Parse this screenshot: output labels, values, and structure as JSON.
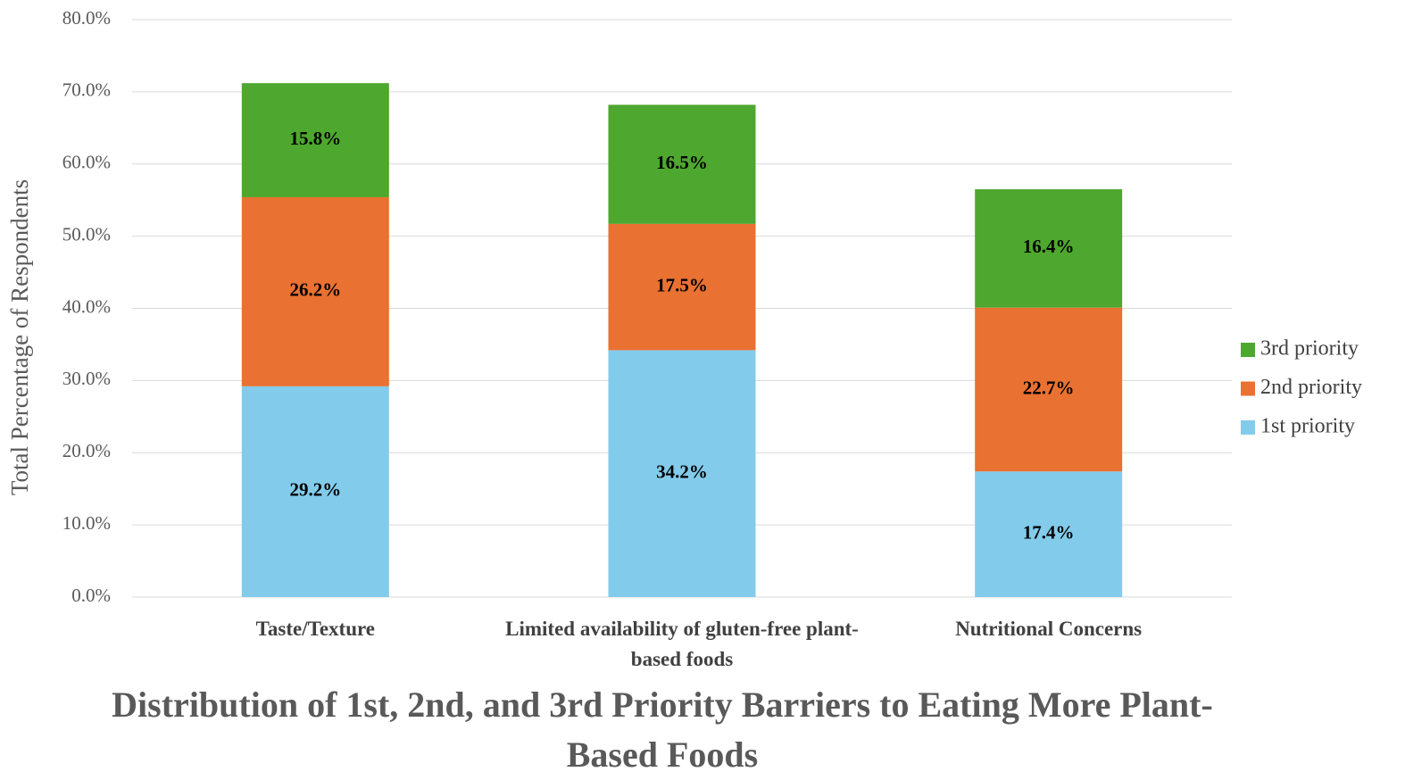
{
  "chart_data": {
    "type": "stacked_bar",
    "title": "Distribution of 1st, 2nd, and 3rd Priority Barriers to Eating More Plant-Based Foods",
    "y_label": "Total Percentage of Respondents",
    "categories": [
      "Taste/Texture",
      "Limited availability of gluten-free plant-based foods",
      "Nutritional Concerns"
    ],
    "series": [
      {
        "name": "1st priority",
        "color": "#83cbeb",
        "values": [
          29.2,
          34.2,
          17.4
        ],
        "value_labels": [
          "29.2%",
          "34.2%",
          "17.4%"
        ]
      },
      {
        "name": "2nd priority",
        "color": "#e97132",
        "values": [
          26.2,
          17.5,
          22.7
        ],
        "value_labels": [
          "26.2%",
          "17.5%",
          "22.7%"
        ]
      },
      {
        "name": "3rd priority",
        "color": "#4ea72e",
        "values": [
          15.8,
          16.5,
          16.4
        ],
        "value_labels": [
          "15.8%",
          "16.5%",
          "16.4%"
        ]
      }
    ],
    "ylim": [
      0,
      80
    ],
    "yticks": [
      {
        "value": 0,
        "label": "0.0%"
      },
      {
        "value": 10,
        "label": "10.0%"
      },
      {
        "value": 20,
        "label": "20.0%"
      },
      {
        "value": 30,
        "label": "30.0%"
      },
      {
        "value": 40,
        "label": "40.0%"
      },
      {
        "value": 50,
        "label": "50.0%"
      },
      {
        "value": 60,
        "label": "60.0%"
      },
      {
        "value": 70,
        "label": "70.0%"
      },
      {
        "value": 80,
        "label": "80.0%"
      }
    ],
    "grid": true,
    "legend": "right"
  }
}
